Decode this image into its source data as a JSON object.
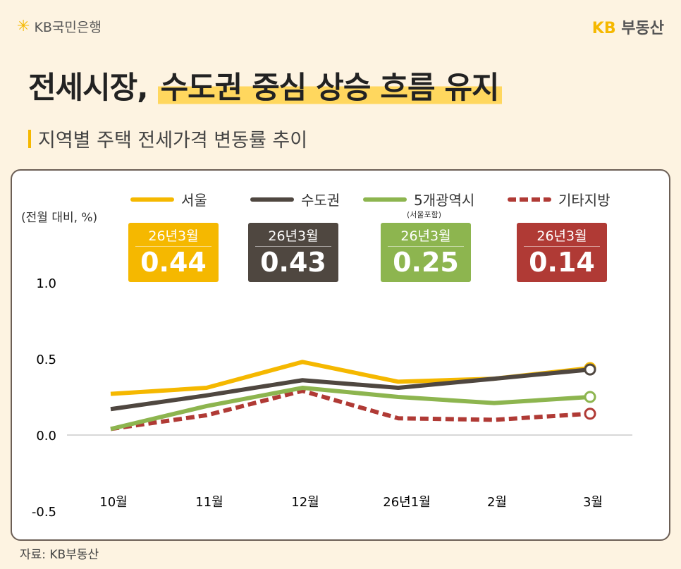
{
  "header": {
    "bank_logo": "KB국민은행",
    "brand_logo_kb": "KB",
    "brand_logo_name": "부동산"
  },
  "title": {
    "part1": "전세시장,",
    "part2": "수도권 중심 상승 흐름 유지"
  },
  "subtitle": "지역별 주택 전세가격 변동률 추이",
  "unit": "(전월 대비, %)",
  "source": "자료: KB부동산",
  "colors": {
    "seoul": "#f5b800",
    "capital": "#4f4740",
    "metro5": "#8db54f",
    "other": "#b03a35",
    "bg": "#fdf3e1"
  },
  "chart_data": {
    "type": "line",
    "categories": [
      "10월",
      "11월",
      "12월",
      "26년1월",
      "2월",
      "3월"
    ],
    "ylim": [
      -0.5,
      1.0
    ],
    "yticks": [
      "1.0",
      "0.5",
      "0.0",
      "-0.5"
    ],
    "legend_position": "top",
    "series": [
      {
        "name": "서울",
        "values": [
          0.27,
          0.31,
          0.48,
          0.35,
          0.37,
          0.44
        ],
        "badge_label": "26년3월",
        "badge_value": "0.44",
        "style": "solid"
      },
      {
        "name": "수도권",
        "note": "(서울포함)",
        "values": [
          0.17,
          0.26,
          0.36,
          0.31,
          0.37,
          0.43
        ],
        "badge_label": "26년3월",
        "badge_value": "0.43",
        "style": "solid"
      },
      {
        "name": "5개광역시",
        "values": [
          0.04,
          0.19,
          0.31,
          0.25,
          0.21,
          0.25
        ],
        "badge_label": "26년3월",
        "badge_value": "0.25",
        "style": "solid"
      },
      {
        "name": "기타지방",
        "values": [
          0.04,
          0.13,
          0.29,
          0.11,
          0.1,
          0.14
        ],
        "badge_label": "26년3월",
        "badge_value": "0.14",
        "style": "dashed"
      }
    ]
  }
}
